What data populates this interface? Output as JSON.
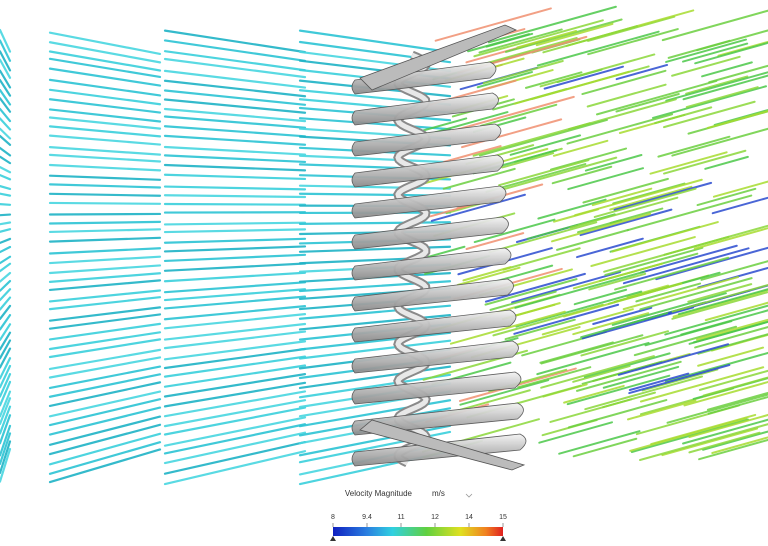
{
  "legend": {
    "title": "Velocity Magnitude",
    "unit": "m/s",
    "range": [
      8,
      15
    ],
    "ticks": [
      8,
      9.4,
      {
        "value": 10.8,
        "label": "11"
      },
      {
        "value": 12.2,
        "label": "12"
      },
      {
        "value": 13.6,
        "label": "14"
      },
      15
    ]
  }
}
